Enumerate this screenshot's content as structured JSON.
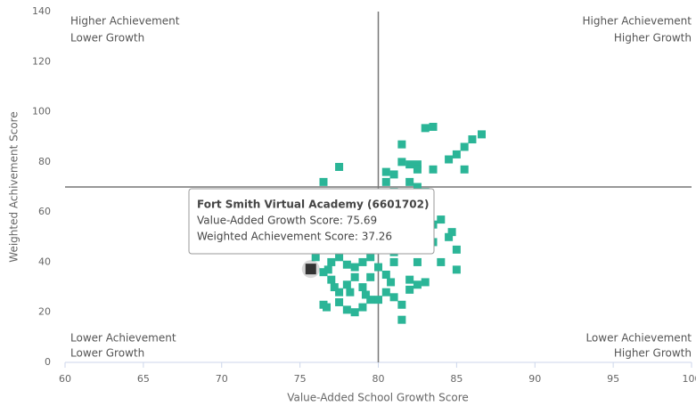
{
  "chart_data": {
    "type": "scatter",
    "x_label": "Value-Added School Growth Score",
    "y_label": "Weighted Achivement Score",
    "xlim": [
      60,
      100
    ],
    "xticks": [
      60,
      65,
      70,
      75,
      80,
      85,
      90,
      95,
      100
    ],
    "ylim": [
      0,
      140
    ],
    "yticks": [
      0,
      20,
      40,
      60,
      80,
      100,
      120,
      140
    ],
    "reference_lines": {
      "x": 80,
      "y": 70
    },
    "quadrant_labels": {
      "top_left": [
        "Higher Achievement",
        "Lower Growth"
      ],
      "top_right": [
        "Higher Achievement",
        "Higher Growth"
      ],
      "bottom_left": [
        "Lower Achievement",
        "Lower Growth"
      ],
      "bottom_right": [
        "Lower Achievement",
        "Higher Growth"
      ]
    },
    "series": [
      {
        "color": "#2bb597",
        "x": [
          86.6,
          86,
          85.5,
          85,
          84.5,
          85.5,
          83.5,
          83,
          81.5,
          83.5,
          82.5,
          81.5,
          82,
          82.5,
          81,
          80.5,
          80.5,
          77.5,
          76.5,
          77,
          78,
          82,
          82.5,
          83,
          82,
          81.5,
          83,
          84,
          84.5,
          85,
          84,
          85,
          82,
          83,
          82.5,
          82,
          81,
          81.5,
          81.5,
          80.5,
          80,
          79.5,
          79,
          78.5,
          78,
          77.5,
          76.5,
          76.7,
          76,
          76.5,
          77,
          77.5,
          78,
          78.5,
          79,
          79.5,
          80,
          80.5,
          81,
          80,
          79,
          79.5,
          80.5,
          81,
          78,
          77.5,
          78.5,
          79,
          80,
          77,
          76.5,
          77,
          78,
          79,
          79.5,
          78.5,
          77.5,
          80.5,
          81,
          76,
          77.2,
          78.2,
          76.8,
          79.2,
          80.8,
          82.8,
          83.5,
          83.5,
          84.7,
          83,
          82,
          81,
          82,
          82.5,
          81,
          79.8
        ],
        "values": [
          91,
          89,
          86,
          83,
          81,
          77,
          94,
          93.5,
          87,
          77,
          79,
          80,
          79,
          77,
          75,
          76,
          72,
          78,
          72,
          64,
          61,
          72,
          70,
          68,
          66,
          64,
          62,
          57,
          50,
          45,
          40,
          37,
          33,
          32,
          31,
          29,
          26,
          23,
          17,
          28,
          25,
          25,
          22,
          20,
          21,
          24,
          23,
          22,
          55,
          50,
          46,
          42,
          39,
          38,
          40,
          42,
          38,
          45,
          50,
          55,
          58,
          62,
          65,
          68,
          53,
          50,
          47,
          45,
          48,
          40,
          36,
          33,
          31,
          30,
          34,
          34,
          28,
          35,
          40,
          42,
          30,
          28,
          37,
          27,
          32,
          60,
          55,
          48,
          52,
          45,
          52,
          58,
          46,
          40,
          44,
          52
        ]
      }
    ],
    "highlight": {
      "color": "#333333",
      "x": 75.69,
      "y": 37.26
    },
    "tooltip": {
      "title": "Fort Smith Virtual Academy (6601702)",
      "lines": [
        "Value-Added Growth Score: 75.69",
        "Weighted Achievement Score: 37.26"
      ]
    }
  }
}
